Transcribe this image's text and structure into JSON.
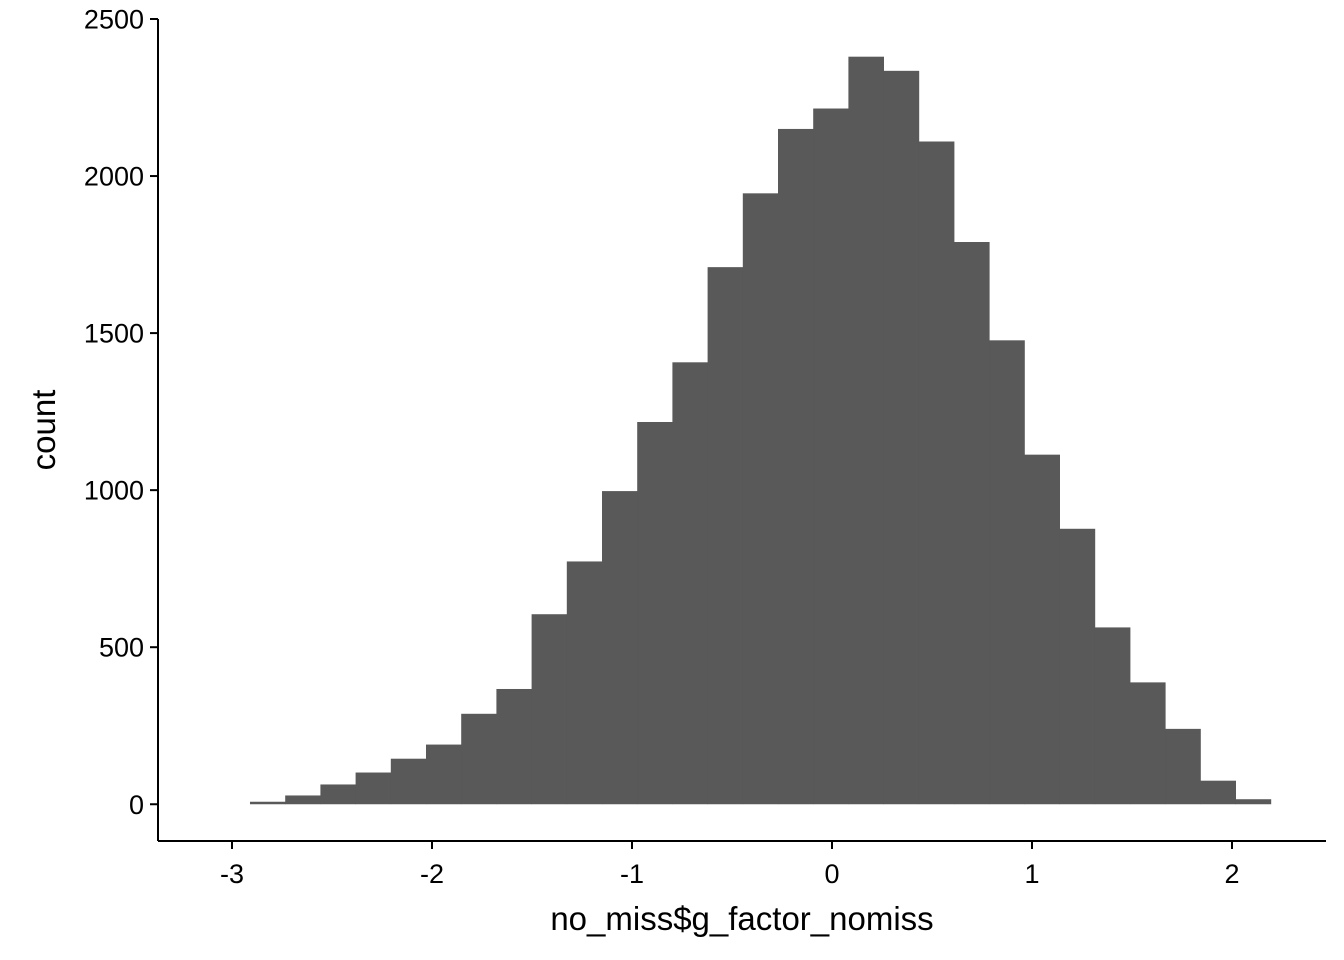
{
  "chart_data": {
    "type": "bar",
    "subtype": "histogram",
    "title": "",
    "xlabel": "no_miss$g_factor_nomiss",
    "ylabel": "count",
    "xlim": [
      -3.37,
      2.47
    ],
    "ylim": [
      -117,
      2500
    ],
    "x_ticks": [
      {
        "value": -3,
        "label": "-3"
      },
      {
        "value": -2,
        "label": "-2"
      },
      {
        "value": -1,
        "label": "-1"
      },
      {
        "value": 0,
        "label": "0"
      },
      {
        "value": 1,
        "label": "1"
      },
      {
        "value": 2,
        "label": "2"
      }
    ],
    "y_ticks": [
      {
        "value": 0,
        "label": "0"
      },
      {
        "value": 500,
        "label": "500"
      },
      {
        "value": 1000,
        "label": "1000"
      },
      {
        "value": 1500,
        "label": "1500"
      },
      {
        "value": 2000,
        "label": "2000"
      },
      {
        "value": 2500,
        "label": "2500"
      }
    ],
    "grid": false,
    "bar_color": "#595959",
    "bin_width": 0.176,
    "bins": [
      {
        "x0": -2.91,
        "count": 8
      },
      {
        "x0": -2.734,
        "count": 28
      },
      {
        "x0": -2.558,
        "count": 63
      },
      {
        "x0": -2.382,
        "count": 101
      },
      {
        "x0": -2.206,
        "count": 145
      },
      {
        "x0": -2.03,
        "count": 190
      },
      {
        "x0": -1.854,
        "count": 288
      },
      {
        "x0": -1.678,
        "count": 367
      },
      {
        "x0": -1.502,
        "count": 605
      },
      {
        "x0": -1.326,
        "count": 773
      },
      {
        "x0": -1.15,
        "count": 997
      },
      {
        "x0": -0.974,
        "count": 1217
      },
      {
        "x0": -0.798,
        "count": 1407
      },
      {
        "x0": -0.622,
        "count": 1710
      },
      {
        "x0": -0.446,
        "count": 1945
      },
      {
        "x0": -0.27,
        "count": 2150
      },
      {
        "x0": -0.094,
        "count": 2215
      },
      {
        "x0": 0.082,
        "count": 2380
      },
      {
        "x0": 0.258,
        "count": 2335
      },
      {
        "x0": 0.434,
        "count": 2110
      },
      {
        "x0": 0.61,
        "count": 1790
      },
      {
        "x0": 0.786,
        "count": 1477
      },
      {
        "x0": 0.962,
        "count": 1113
      },
      {
        "x0": 1.138,
        "count": 877
      },
      {
        "x0": 1.314,
        "count": 563
      },
      {
        "x0": 1.49,
        "count": 388
      },
      {
        "x0": 1.666,
        "count": 240
      },
      {
        "x0": 1.842,
        "count": 75
      },
      {
        "x0": 2.018,
        "count": 16
      }
    ]
  }
}
